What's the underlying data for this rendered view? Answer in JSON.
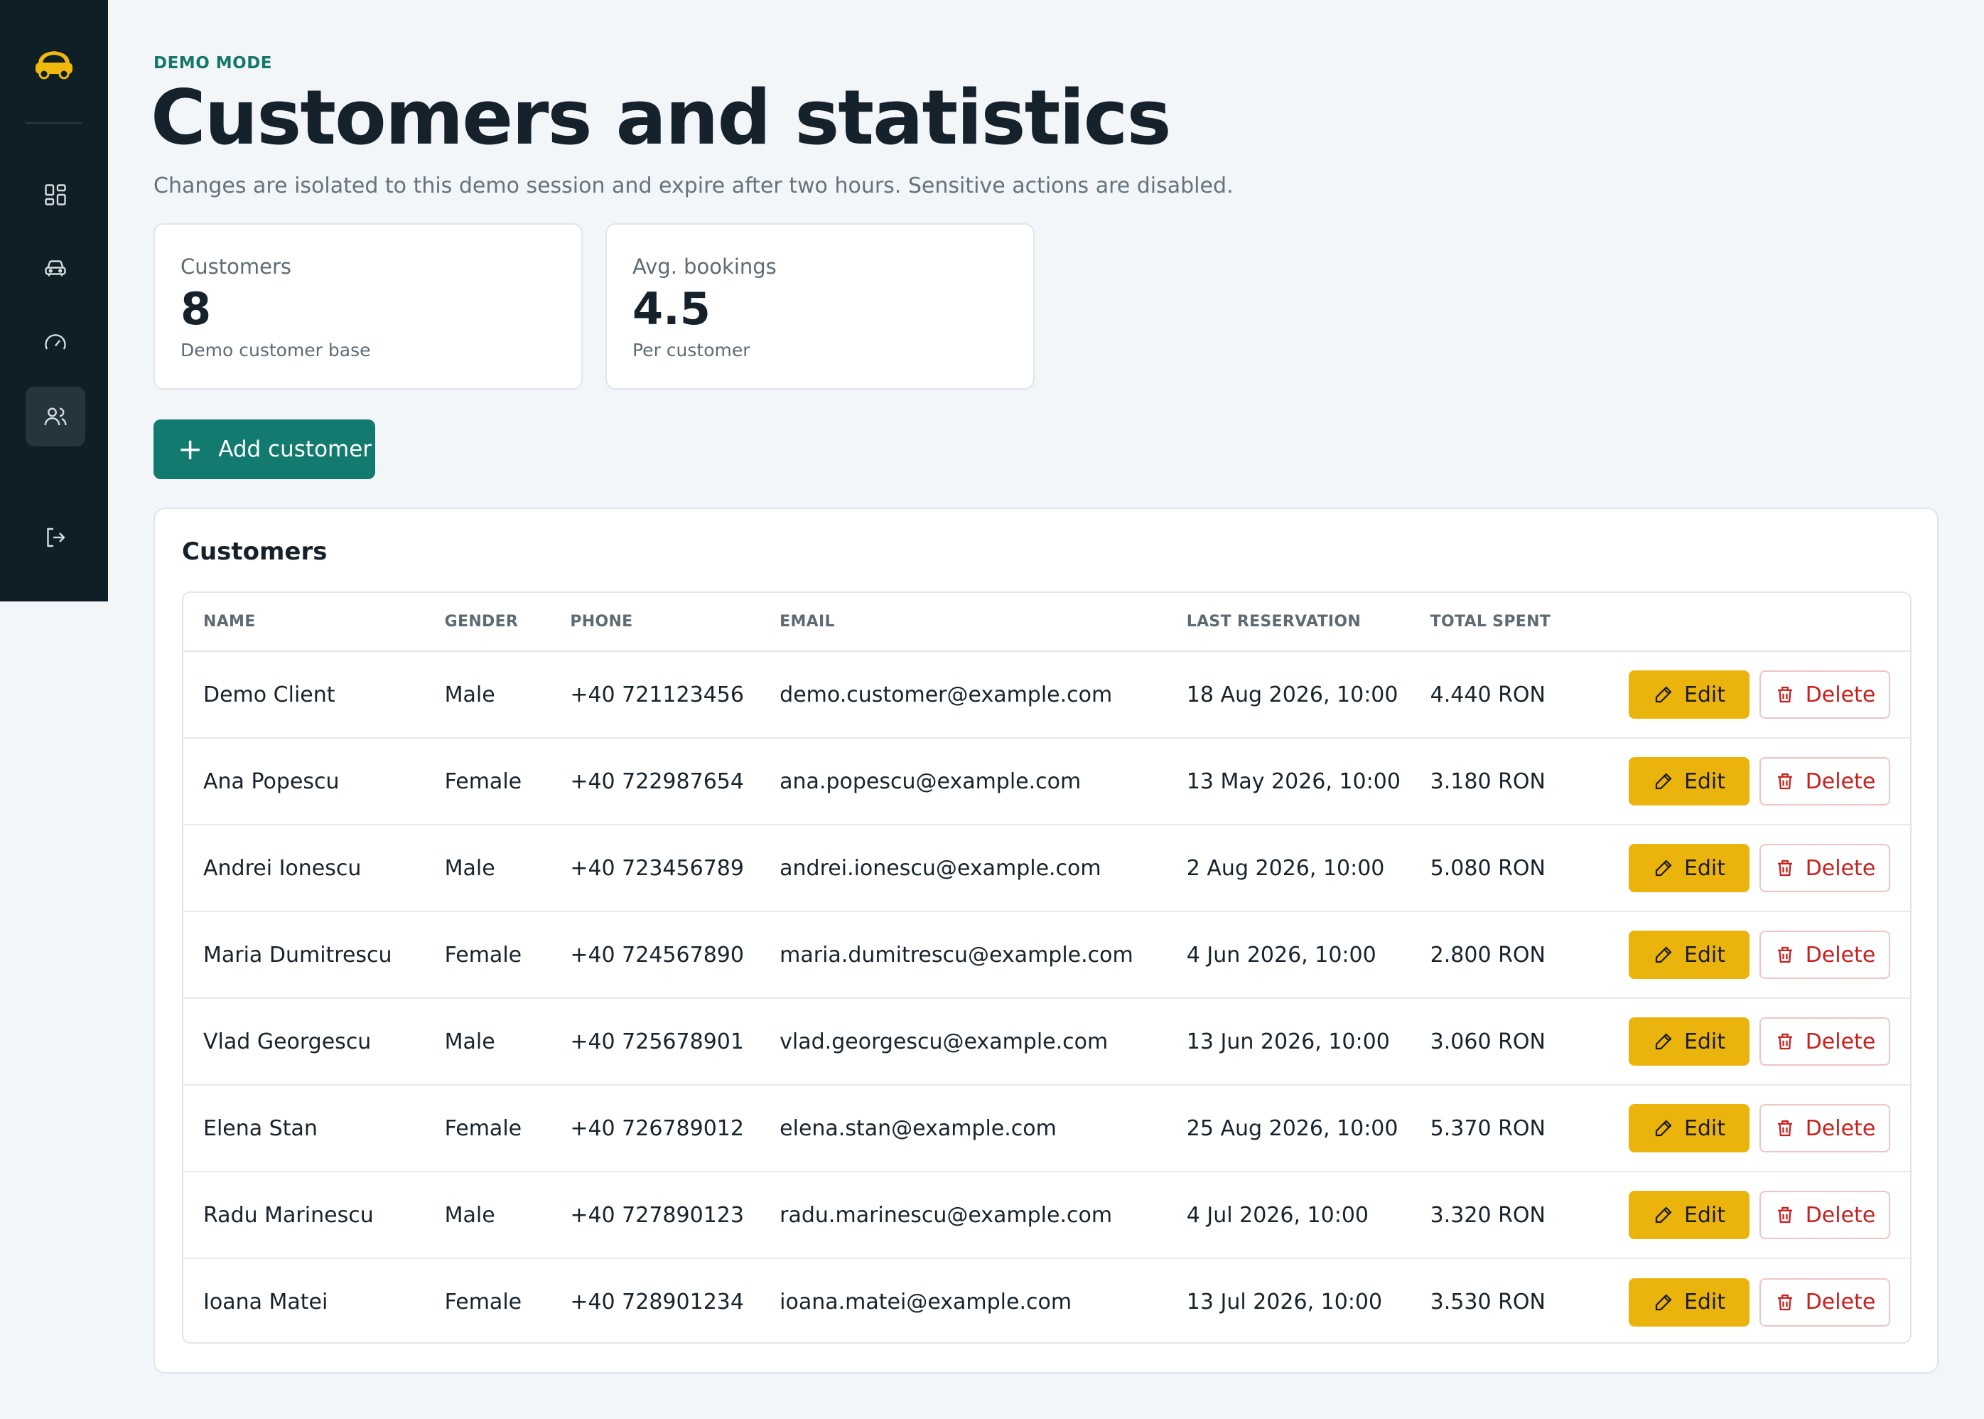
{
  "eyebrow": "DEMO MODE",
  "title": "Customers and statistics",
  "subtitle": "Changes are isolated to this demo session and expire after two hours. Sensitive actions are disabled.",
  "sidebar": {
    "items": [
      {
        "icon": "dashboard-icon"
      },
      {
        "icon": "car-icon"
      },
      {
        "icon": "speedometer-icon"
      },
      {
        "icon": "users-icon",
        "active": true
      },
      {
        "icon": "logout-icon"
      }
    ]
  },
  "stats": [
    {
      "label": "Customers",
      "value": "8",
      "sub": "Demo customer base"
    },
    {
      "label": "Avg. bookings",
      "value": "4.5",
      "sub": "Per customer"
    }
  ],
  "add_button": "Add customer",
  "panel": {
    "title": "Customers",
    "columns": [
      "NAME",
      "GENDER",
      "PHONE",
      "EMAIL",
      "LAST RESERVATION",
      "TOTAL SPENT"
    ],
    "edit_label": "Edit",
    "delete_label": "Delete",
    "rows": [
      [
        "Demo Client",
        "Male",
        "+40 721123456",
        "demo.customer@example.com",
        "18 Aug 2026, 10:00",
        "4.440 RON"
      ],
      [
        "Ana Popescu",
        "Female",
        "+40 722987654",
        "ana.popescu@example.com",
        "13 May 2026, 10:00",
        "3.180 RON"
      ],
      [
        "Andrei Ionescu",
        "Male",
        "+40 723456789",
        "andrei.ionescu@example.com",
        "2 Aug 2026, 10:00",
        "5.080 RON"
      ],
      [
        "Maria Dumitrescu",
        "Female",
        "+40 724567890",
        "maria.dumitrescu@example.com",
        "4 Jun 2026, 10:00",
        "2.800 RON"
      ],
      [
        "Vlad Georgescu",
        "Male",
        "+40 725678901",
        "vlad.georgescu@example.com",
        "13 Jun 2026, 10:00",
        "3.060 RON"
      ],
      [
        "Elena Stan",
        "Female",
        "+40 726789012",
        "elena.stan@example.com",
        "25 Aug 2026, 10:00",
        "5.370 RON"
      ],
      [
        "Radu Marinescu",
        "Male",
        "+40 727890123",
        "radu.marinescu@example.com",
        "4 Jul 2026, 10:00",
        "3.320 RON"
      ],
      [
        "Ioana Matei",
        "Female",
        "+40 728901234",
        "ioana.matei@example.com",
        "13 Jul 2026, 10:00",
        "3.530 RON"
      ]
    ]
  },
  "colors": {
    "sidebar": "#0f1f26",
    "accent": "#127a6e",
    "edit": "#ebb40c",
    "delete": "#c8201d",
    "logo": "#f0b90b"
  }
}
